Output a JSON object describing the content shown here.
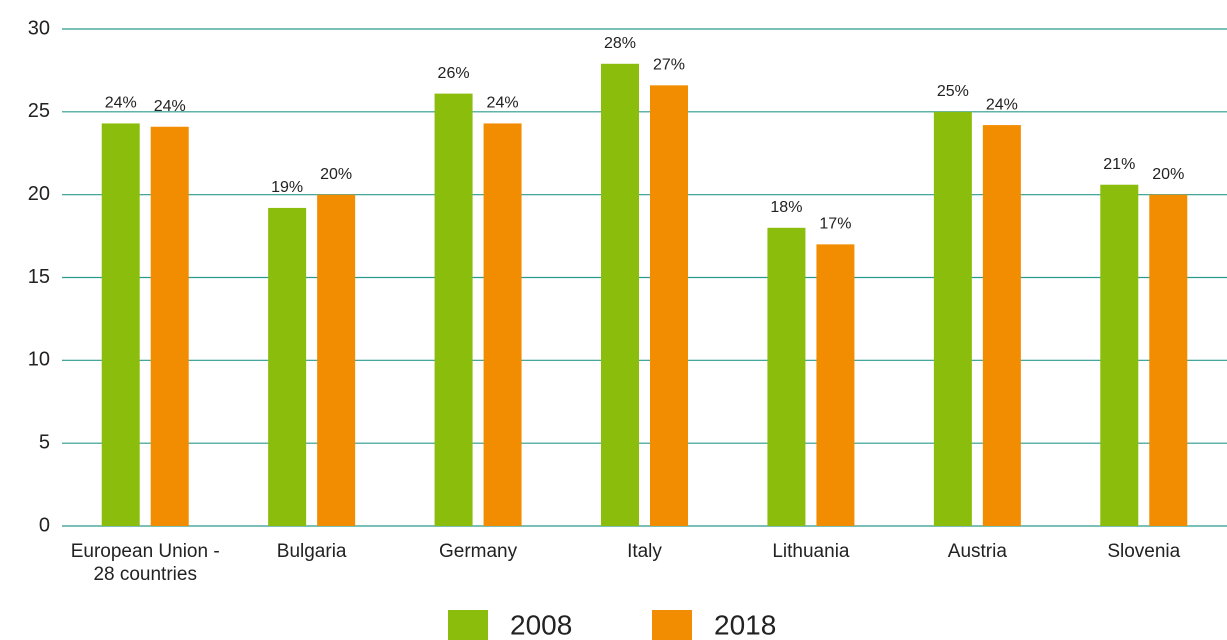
{
  "chart_data": {
    "type": "bar",
    "categories": [
      "European Union - 28 countries",
      "Bulgaria",
      "Germany",
      "Italy",
      "Lithuania",
      "Austria",
      "Slovenia"
    ],
    "series": [
      {
        "name": "2008",
        "color": "#8bbd0c",
        "values": [
          24.3,
          19.2,
          26.1,
          27.9,
          18.0,
          25.0,
          20.6
        ],
        "value_labels": [
          "24%",
          "19%",
          "26%",
          "28%",
          "18%",
          "25%",
          "21%"
        ]
      },
      {
        "name": "2018",
        "color": "#f28c00",
        "values": [
          24.1,
          20.0,
          24.3,
          26.6,
          17.0,
          24.2,
          20.0
        ],
        "value_labels": [
          "24%",
          "20%",
          "24%",
          "27%",
          "17%",
          "24%",
          "20%"
        ]
      }
    ],
    "ylim": [
      0,
      30
    ],
    "yticks": [
      0,
      5,
      10,
      15,
      20,
      25,
      30
    ],
    "grid": true,
    "grid_color": "#2a9a8f",
    "legend": "bottom"
  }
}
